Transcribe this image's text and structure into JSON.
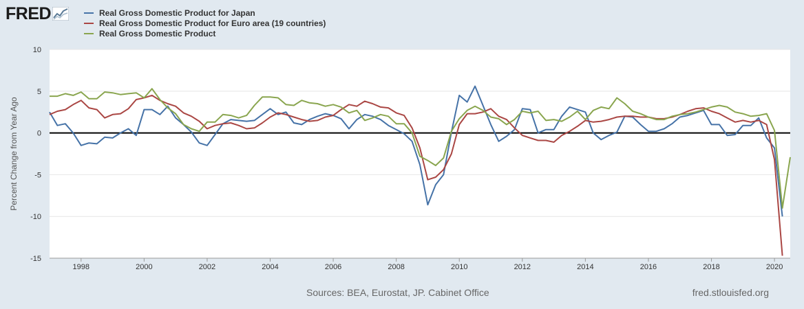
{
  "brand": {
    "logo_text": "FRED"
  },
  "footer": {
    "sources": "Sources: BEA, Eurostat, JP. Cabinet Office",
    "site": "fred.stlouisfed.org"
  },
  "chart_data": {
    "type": "line",
    "title": "",
    "xlabel": "",
    "ylabel": "Percent Change from Year Ago",
    "xlim": [
      1997.0,
      2020.5
    ],
    "ylim": [
      -15,
      10
    ],
    "yticks": [
      10,
      5,
      0,
      -5,
      -10,
      -15
    ],
    "xticks": [
      1998,
      2000,
      2002,
      2004,
      2006,
      2008,
      2010,
      2012,
      2014,
      2016,
      2018,
      2020
    ],
    "grid": true,
    "legend_position": "top-left",
    "start": 1997.0,
    "step": 0.25,
    "series": [
      {
        "name": "Real Gross Domestic Product for Japan",
        "color": "#4572a7",
        "values": [
          2.5,
          0.9,
          1.1,
          0.0,
          -1.5,
          -1.2,
          -1.3,
          -0.5,
          -0.6,
          0.0,
          0.5,
          -0.3,
          2.8,
          2.8,
          2.2,
          3.2,
          1.8,
          1.0,
          0.1,
          -1.2,
          -1.5,
          -0.2,
          1.1,
          1.6,
          1.5,
          1.4,
          1.5,
          2.2,
          2.9,
          2.2,
          2.5,
          1.2,
          1.0,
          1.6,
          2.0,
          2.3,
          2.1,
          1.7,
          0.5,
          1.6,
          2.2,
          2.0,
          1.6,
          0.9,
          0.4,
          -0.1,
          -1.0,
          -3.8,
          -8.6,
          -6.2,
          -5.0,
          0.1,
          4.5,
          3.7,
          5.6,
          3.3,
          1.0,
          -1.0,
          -0.4,
          0.4,
          2.9,
          2.8,
          0.0,
          0.4,
          0.4,
          2.0,
          3.1,
          2.8,
          2.5,
          0.0,
          -0.8,
          -0.3,
          0.1,
          2.0,
          1.9,
          1.0,
          0.2,
          0.2,
          0.5,
          1.1,
          1.9,
          2.1,
          2.4,
          2.7,
          1.0,
          1.0,
          -0.3,
          -0.2,
          0.9,
          0.9,
          1.8,
          -0.6,
          -1.8,
          -10.0
        ]
      },
      {
        "name": "Real Gross Domestic Product for Euro area (19 countries)",
        "color": "#aa4643",
        "values": [
          2.2,
          2.6,
          2.8,
          3.4,
          3.9,
          3.0,
          2.8,
          1.8,
          2.2,
          2.3,
          2.9,
          4.0,
          4.2,
          4.5,
          3.9,
          3.5,
          3.2,
          2.4,
          2.0,
          1.4,
          0.5,
          0.9,
          1.1,
          1.2,
          0.9,
          0.5,
          0.6,
          1.2,
          1.9,
          2.4,
          2.2,
          1.9,
          1.6,
          1.4,
          1.5,
          1.9,
          2.1,
          2.8,
          3.4,
          3.2,
          3.8,
          3.5,
          3.1,
          3.0,
          2.4,
          2.1,
          0.6,
          -1.8,
          -5.6,
          -5.3,
          -4.4,
          -2.5,
          1.0,
          2.3,
          2.3,
          2.5,
          2.9,
          2.0,
          1.6,
          0.6,
          -0.3,
          -0.6,
          -0.9,
          -0.9,
          -1.1,
          -0.3,
          0.2,
          0.8,
          1.5,
          1.3,
          1.4,
          1.6,
          1.9,
          2.0,
          2.0,
          1.9,
          1.9,
          1.7,
          1.7,
          1.9,
          2.2,
          2.6,
          2.9,
          3.0,
          2.6,
          2.3,
          1.8,
          1.3,
          1.5,
          1.3,
          1.5,
          1.0,
          -3.2,
          -14.7
        ]
      },
      {
        "name": "Real Gross Domestic Product",
        "color": "#89a54e",
        "values": [
          4.4,
          4.4,
          4.7,
          4.5,
          4.9,
          4.1,
          4.1,
          4.9,
          4.8,
          4.6,
          4.7,
          4.8,
          4.2,
          5.3,
          4.0,
          3.0,
          2.3,
          1.0,
          0.5,
          0.2,
          1.3,
          1.3,
          2.2,
          2.1,
          1.8,
          2.1,
          3.3,
          4.3,
          4.3,
          4.2,
          3.4,
          3.3,
          3.9,
          3.6,
          3.5,
          3.2,
          3.4,
          3.1,
          2.4,
          2.7,
          1.5,
          1.8,
          2.2,
          2.0,
          1.1,
          1.1,
          0.0,
          -2.8,
          -3.3,
          -3.9,
          -3.0,
          0.2,
          1.7,
          2.7,
          3.2,
          2.7,
          1.9,
          1.7,
          1.0,
          1.6,
          2.6,
          2.4,
          2.6,
          1.5,
          1.6,
          1.4,
          1.9,
          2.6,
          1.6,
          2.7,
          3.1,
          2.9,
          4.2,
          3.5,
          2.6,
          2.3,
          1.9,
          1.6,
          1.6,
          2.0,
          2.2,
          2.3,
          2.5,
          2.8,
          3.1,
          3.3,
          3.1,
          2.5,
          2.3,
          2.0,
          2.1,
          2.3,
          0.3,
          -9.0,
          -2.9
        ]
      }
    ]
  }
}
